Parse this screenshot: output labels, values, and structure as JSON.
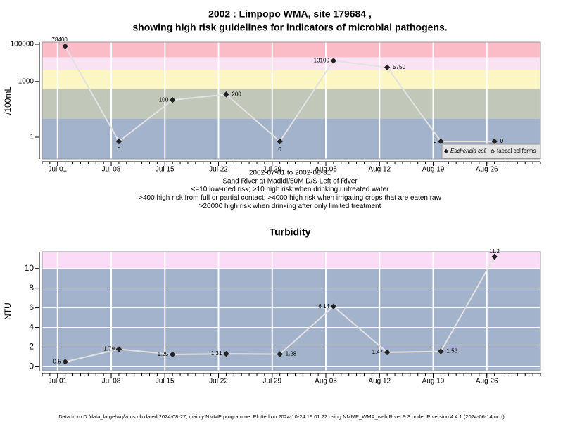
{
  "chart_data": [
    {
      "type": "line",
      "title": [
        "2002 : Limpopo WMA, site 179684 ,",
        "showing high risk guidelines for indicators of microbial pathogens."
      ],
      "y_label": "/100mL",
      "log_y": true,
      "x": [
        "07-02",
        "07-09",
        "07-16",
        "07-23",
        "07-30",
        "08-06",
        "08-13",
        "08-20",
        "08-27"
      ],
      "xlim": [
        "06-29",
        "09-02"
      ],
      "xticks": [
        {
          "value": "07-01",
          "label": "Jul 01"
        },
        {
          "value": "07-08",
          "label": "Jul 08"
        },
        {
          "value": "07-15",
          "label": "Jul 15"
        },
        {
          "value": "07-22",
          "label": "Jul 22"
        },
        {
          "value": "07-29",
          "label": "Jul 29"
        },
        {
          "value": "08-05",
          "label": "Aug 05"
        },
        {
          "value": "08-12",
          "label": "Aug 12"
        },
        {
          "value": "08-19",
          "label": "Aug 19"
        },
        {
          "value": "08-26",
          "label": "Aug 26"
        }
      ],
      "ylim": [
        0.067,
        130000
      ],
      "yticks": [
        1,
        1000,
        100000
      ],
      "bands": [
        {
          "to": 10,
          "color": "#a3b3cb"
        },
        {
          "to": 400,
          "color": "#c2c8b9"
        },
        {
          "to": 4000,
          "color": "#fbf6c4"
        },
        {
          "to": 20000,
          "color": "#f9e3f3"
        },
        {
          "color": "#fbbcc8"
        }
      ],
      "series": [
        {
          "name": "Eschericia coli",
          "color": "#222222",
          "values": [
            78400,
            0,
            100,
            200,
            0,
            13100,
            5750,
            0,
            0
          ]
        },
        {
          "name": "faecal coliforms",
          "color": "#ffffff",
          "values": [
            null,
            null,
            null,
            null,
            null,
            null,
            null,
            null,
            null
          ]
        }
      ],
      "legend": "bottomright",
      "notes": [
        "2002-07-01 to 2002-08-31",
        "Sand River at Madidi/50M D/S Left of River",
        "<=10 low-med risk; >10 high risk when drinking untreated water",
        ">400 high risk from full or partial contact; >4000 high risk when irrigating crops that are eaten raw",
        ">20000 high risk when drinking after only limited treatment"
      ]
    },
    {
      "type": "line",
      "title": [
        "Turbidity"
      ],
      "y_label": "NTU",
      "log_y": false,
      "x": [
        "07-02",
        "07-09",
        "07-16",
        "07-23",
        "07-30",
        "08-06",
        "08-13",
        "08-20",
        "08-27"
      ],
      "xlim": [
        "06-29",
        "09-02"
      ],
      "xticks": [
        {
          "value": "07-01",
          "label": "Jul 01"
        },
        {
          "value": "07-08",
          "label": "Jul 08"
        },
        {
          "value": "07-15",
          "label": "Jul 15"
        },
        {
          "value": "07-22",
          "label": "Jul 22"
        },
        {
          "value": "07-29",
          "label": "Jul 29"
        },
        {
          "value": "08-05",
          "label": "Aug 05"
        },
        {
          "value": "08-12",
          "label": "Aug 12"
        },
        {
          "value": "08-19",
          "label": "Aug 19"
        },
        {
          "value": "08-26",
          "label": "Aug 26"
        }
      ],
      "ylim": [
        -0.4,
        11.7
      ],
      "yticks": [
        0,
        2,
        4,
        6,
        8,
        10
      ],
      "bands": [
        {
          "to": 10,
          "color": "#a3b3cb"
        },
        {
          "color": "#fbdcf6"
        }
      ],
      "series": [
        {
          "name": "Turbidity",
          "color": "#222222",
          "values": [
            0.5,
            1.79,
            1.25,
            1.31,
            1.28,
            6.14,
            1.47,
            1.56,
            11.2
          ]
        }
      ]
    }
  ],
  "footer": "Data from D:/data_large/wq/wms.db dated 2024-08-27, mainly NMMP programme. Plotted on 2024-10-24 19:01:22 using NMMP_WMA_web.R ver 9.3 under R version 4.4.1 (2024-06-14 ucrt)"
}
